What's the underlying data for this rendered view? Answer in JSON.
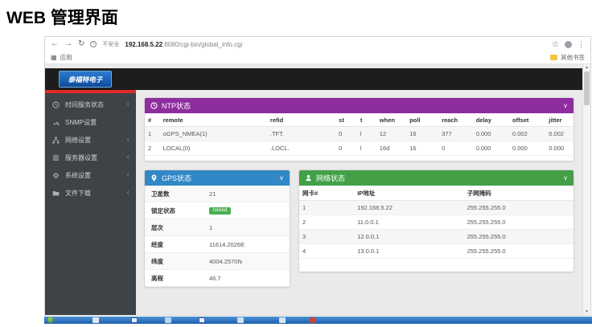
{
  "page": {
    "title": "WEB 管理界面"
  },
  "browser": {
    "back_icon": "←",
    "forward_icon": "→",
    "refresh_icon": "↻",
    "security_label": "不安全",
    "url_host": "192.168.5.22",
    "url_rest": ":8080/cgi-bin/global_info.cgi",
    "bookmarks_apps_label": "应用",
    "bookmarks_other_label": "其他书签"
  },
  "app": {
    "logo_text": "泰福特电子",
    "sidebar_items": [
      {
        "icon": "clock-icon",
        "label": "时间服务状态",
        "has_submenu": true
      },
      {
        "icon": "antenna-icon",
        "label": "SNMP设置",
        "has_submenu": false
      },
      {
        "icon": "network-icon",
        "label": "网络设置",
        "has_submenu": true
      },
      {
        "icon": "list-icon",
        "label": "服务器设置",
        "has_submenu": true
      },
      {
        "icon": "gear-icon",
        "label": "系统设置",
        "has_submenu": true
      },
      {
        "icon": "folder-icon",
        "label": "文件下载",
        "has_submenu": true
      }
    ]
  },
  "panels": {
    "ntp": {
      "title": "NTP状态",
      "columns": [
        "#",
        "remote",
        "refid",
        "st",
        "t",
        "when",
        "poll",
        "reach",
        "delay",
        "offset",
        "jitter"
      ],
      "rows": [
        [
          "1",
          "oGPS_NMEA(1)",
          ".TFT.",
          "0",
          "l",
          "12",
          "16",
          "377",
          "0.000",
          "0.002",
          "0.002"
        ],
        [
          "2",
          "LOCAL(0)",
          ".LOCL.",
          "0",
          "l",
          "16d",
          "16",
          "0",
          "0.000",
          "0.000",
          "0.000"
        ]
      ]
    },
    "gps": {
      "title": "GPS状态",
      "rows": [
        {
          "label": "卫星数",
          "value": "21",
          "badge": false
        },
        {
          "label": "锁定状态",
          "value": "locked",
          "badge": true
        },
        {
          "label": "层次",
          "value": "1",
          "badge": false
        },
        {
          "label": "经度",
          "value": "11614.2026E",
          "badge": false
        },
        {
          "label": "纬度",
          "value": "4004.2570N",
          "badge": false
        },
        {
          "label": "高程",
          "value": "46.7",
          "badge": false
        }
      ]
    },
    "network": {
      "title": "网络状态",
      "columns": [
        "网卡#",
        "IP地址",
        "子网掩码"
      ],
      "rows": [
        [
          "1",
          "192.168.5.22",
          "255.255.255.0"
        ],
        [
          "2",
          "11.0.0.1",
          "255.255.255.0"
        ],
        [
          "3",
          "12.0.0.1",
          "255.255.255.0"
        ],
        [
          "4",
          "13.0.0.1",
          "255.255.255.0"
        ]
      ]
    }
  },
  "colors": {
    "ntp_header": "#8e2da0",
    "gps_header": "#3287c6",
    "network_header": "#43a047",
    "locked_badge": "#4caf50",
    "sidebar_accent": "#e12a28"
  }
}
